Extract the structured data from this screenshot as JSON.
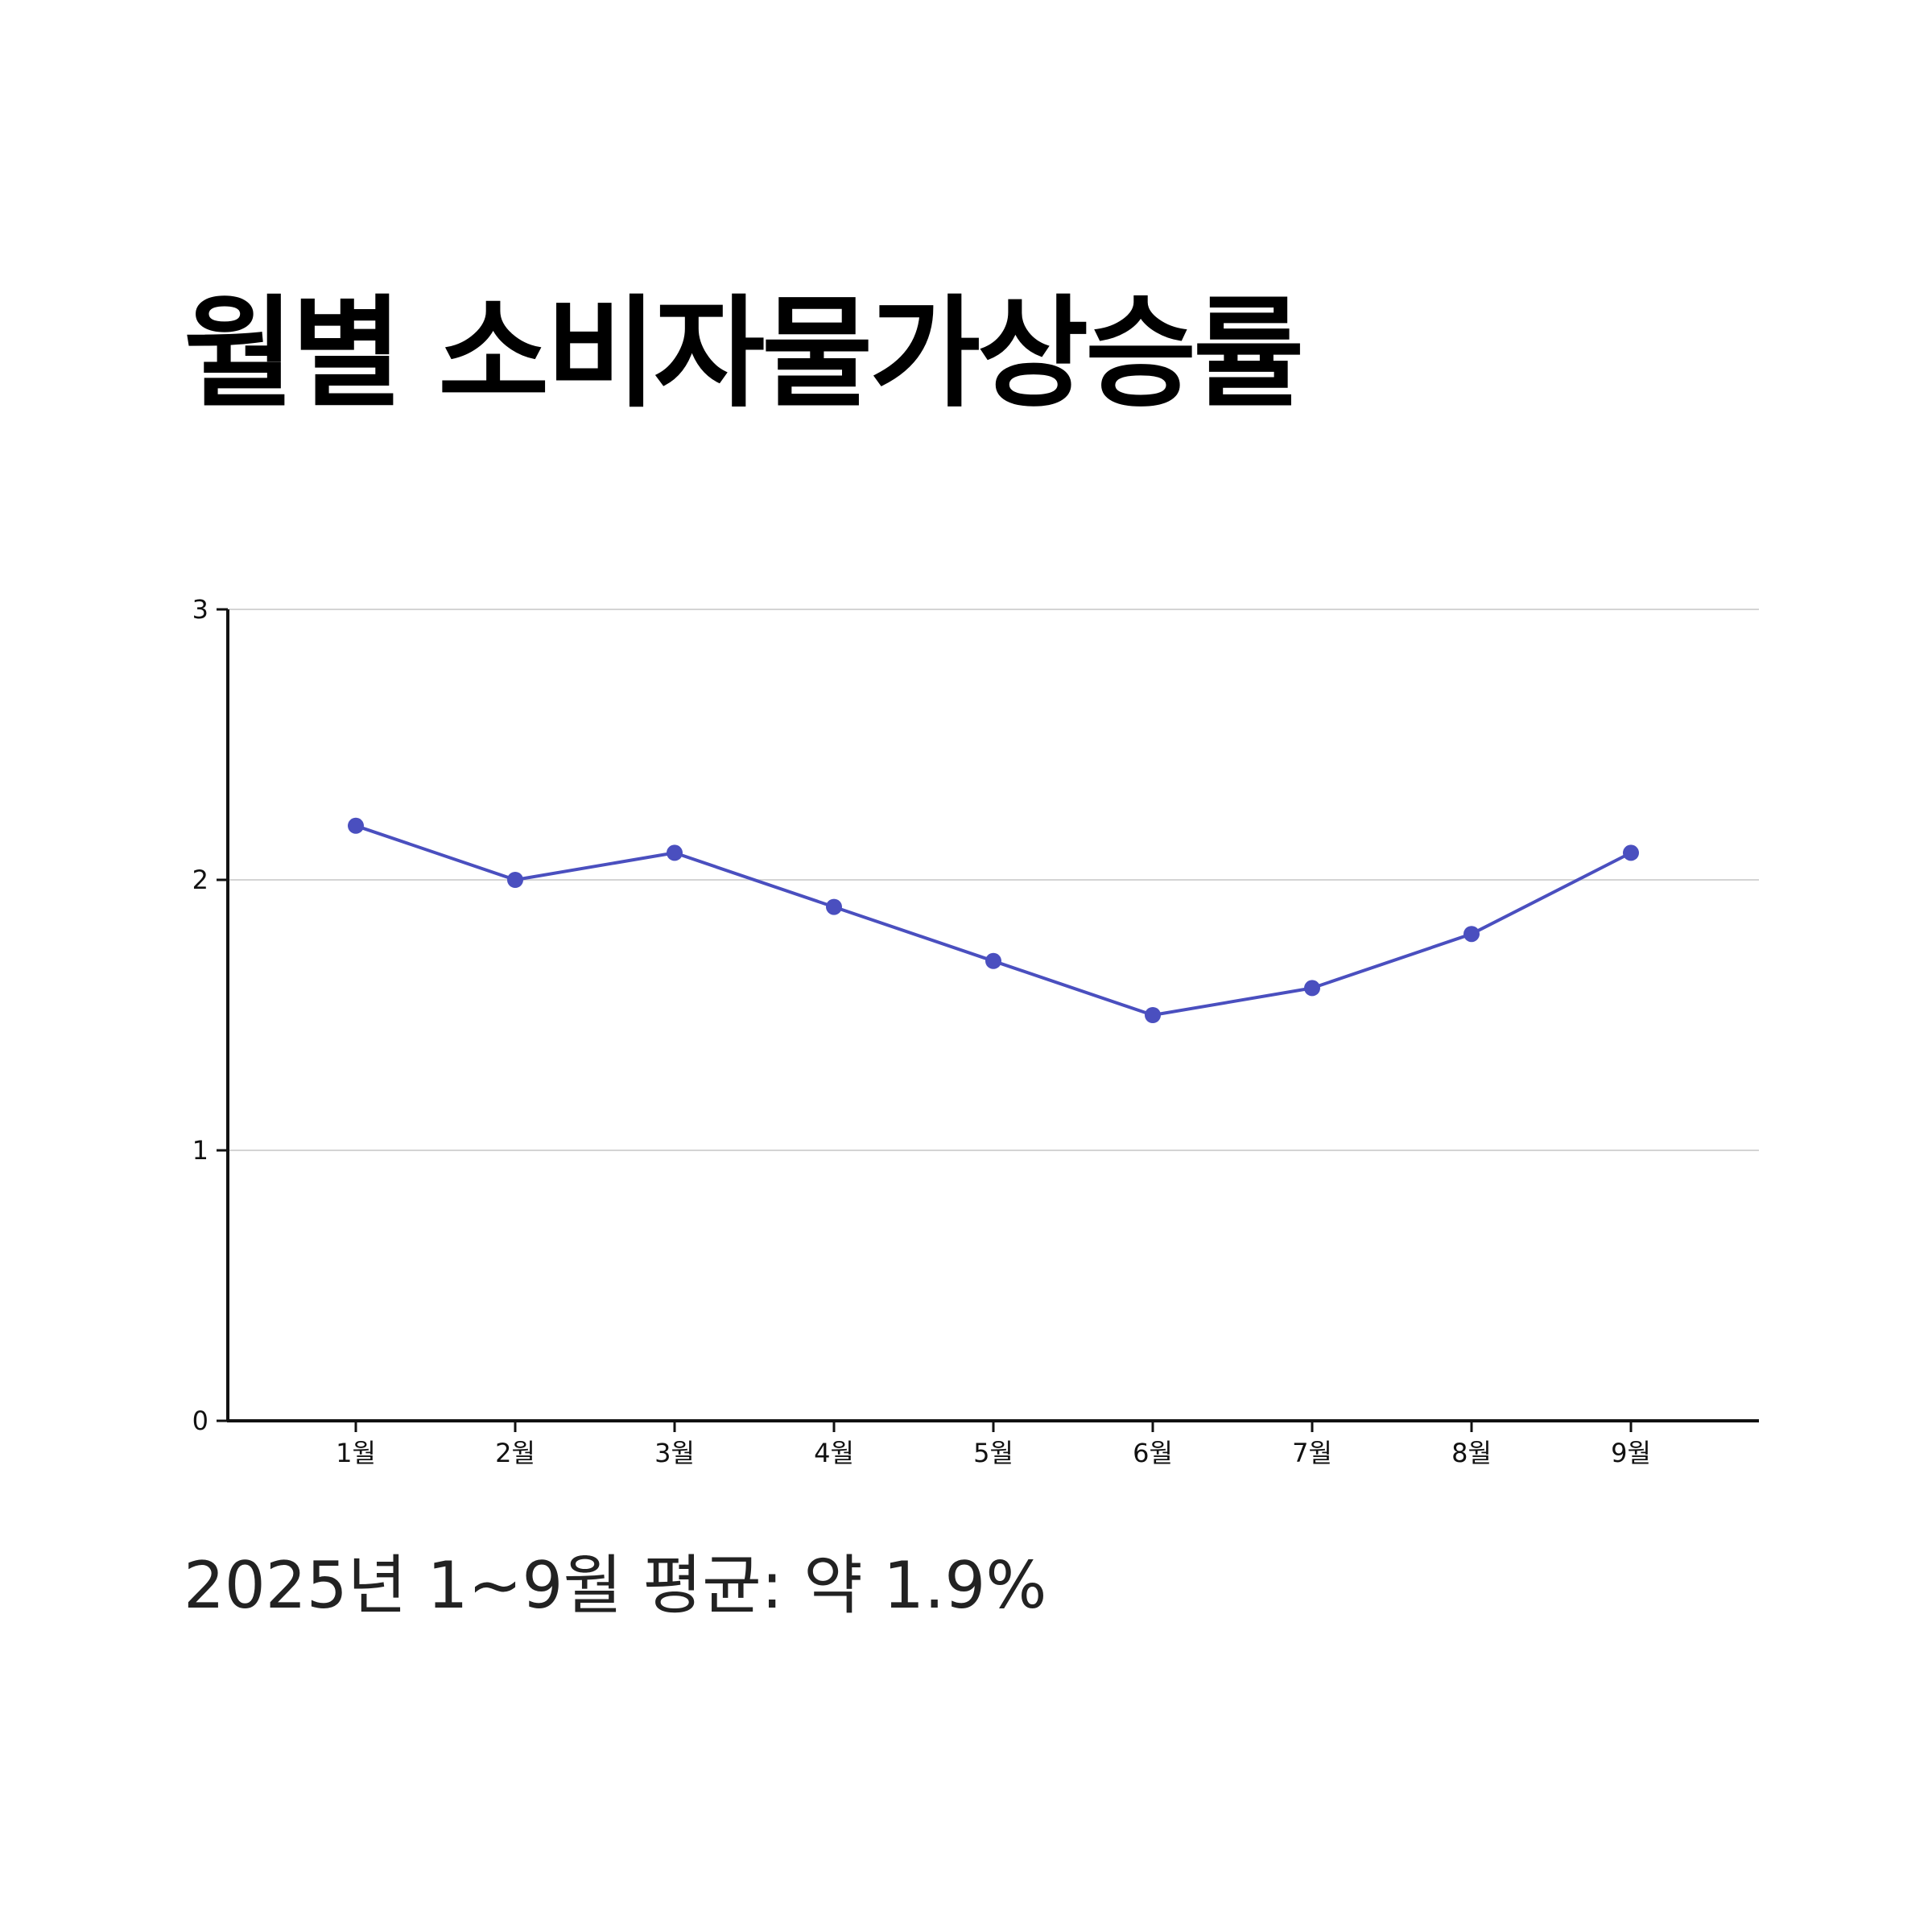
{
  "chart_data": {
    "type": "line",
    "title": "월별 소비자물가상승률",
    "subtitle": "2025년 1~9월 평균: 약 1.9%",
    "xlabel": "",
    "ylabel": "",
    "categories": [
      "1월",
      "2월",
      "3월",
      "4월",
      "5월",
      "6월",
      "7월",
      "8월",
      "9월"
    ],
    "series": [
      {
        "values": [
          2.2,
          2.0,
          2.1,
          1.9,
          1.7,
          1.5,
          1.6,
          1.8,
          2.1
        ]
      }
    ],
    "ylim": [
      0,
      3
    ],
    "yticks": [
      0,
      1,
      2,
      3
    ],
    "grid": true,
    "legend": "none",
    "colors": {
      "line": "#4a4fbf",
      "marker": "#4a4fbf",
      "grid": "#d4d4d4",
      "axis": "#111111"
    }
  }
}
